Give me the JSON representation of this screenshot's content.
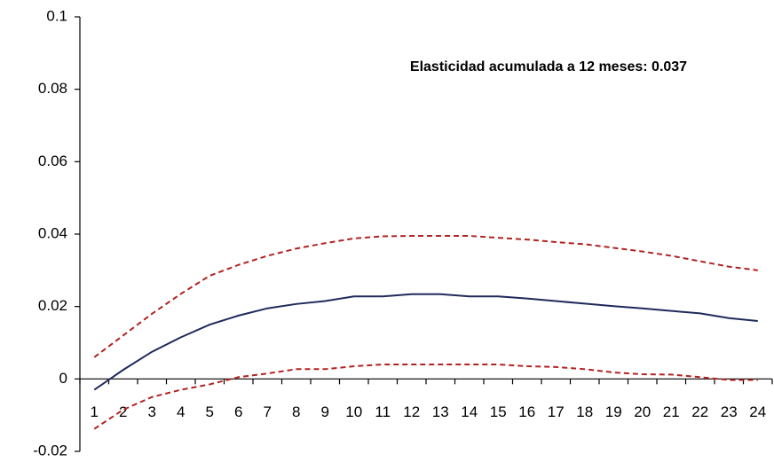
{
  "chart_data": {
    "type": "line",
    "annotation": "Elasticidad  acumulada  a 12 meses: 0.037",
    "categories": [
      "1",
      "2",
      "3",
      "4",
      "5",
      "6",
      "7",
      "8",
      "9",
      "10",
      "11",
      "12",
      "13",
      "14",
      "15",
      "16",
      "17",
      "18",
      "19",
      "20",
      "21",
      "22",
      "23",
      "24"
    ],
    "series": [
      {
        "color": "#1f2a5c",
        "dashed": false,
        "values": [
          -0.003,
          0.0025,
          0.0075,
          0.0115,
          0.015,
          0.0175,
          0.0195,
          0.0207,
          0.0215,
          0.0228,
          0.0228,
          0.0234,
          0.0234,
          0.0228,
          0.0228,
          0.0222,
          0.0215,
          0.0208,
          0.0201,
          0.0195,
          0.0188,
          0.0181,
          0.0168,
          0.016
        ]
      },
      {
        "color": "#b22222",
        "dashed": true,
        "values": [
          0.006,
          0.012,
          0.018,
          0.0235,
          0.0285,
          0.0315,
          0.034,
          0.036,
          0.0375,
          0.0388,
          0.0394,
          0.0395,
          0.0395,
          0.0395,
          0.039,
          0.0385,
          0.0378,
          0.0372,
          0.0362,
          0.0352,
          0.034,
          0.0325,
          0.031,
          0.03
        ]
      },
      {
        "color": "#b22222",
        "dashed": true,
        "values": [
          -0.0138,
          -0.0085,
          -0.005,
          -0.003,
          -0.0015,
          0.0005,
          0.0015,
          0.0027,
          0.0027,
          0.0035,
          0.004,
          0.004,
          0.004,
          0.004,
          0.004,
          0.0035,
          0.0033,
          0.0027,
          0.0018,
          0.0013,
          0.0012,
          0.0005,
          -0.0003,
          -0.0003
        ]
      }
    ],
    "ylim": [
      -0.02,
      0.1
    ],
    "yticks": [
      -0.02,
      0,
      0.02,
      0.04,
      0.06,
      0.08,
      0.1
    ],
    "grid": false
  }
}
